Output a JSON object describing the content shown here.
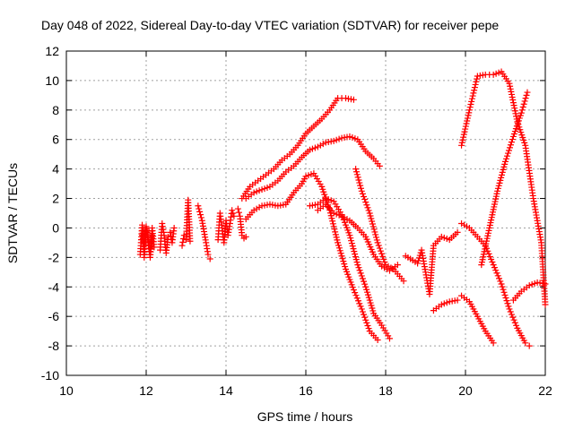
{
  "chart_data": {
    "type": "scatter",
    "title": "Day 048 of 2022, Sidereal Day-to-day VTEC variation (SDTVAR) for receiver pepe",
    "xlabel": "GPS time / hours",
    "ylabel": "SDTVAR / TECUs",
    "xlim": [
      10,
      22
    ],
    "ylim": [
      -10,
      12
    ],
    "xticks": [
      10,
      12,
      14,
      16,
      18,
      20,
      22
    ],
    "yticks": [
      -10,
      -8,
      -6,
      -4,
      -2,
      0,
      2,
      4,
      6,
      8,
      10,
      12
    ],
    "grid": true,
    "marker": "+",
    "color": "#ff0000",
    "series": [
      {
        "x": [
          11.85,
          11.9,
          11.95,
          12.0,
          12.05,
          12.1,
          12.15
        ],
        "y": [
          -1.8,
          0.2,
          -2.0,
          0.0,
          -1.0,
          -2.0,
          -0.5
        ]
      },
      {
        "x": [
          11.9,
          11.95,
          12.0,
          12.05,
          12.1,
          12.15,
          12.2
        ],
        "y": [
          -0.5,
          -1.2,
          0.1,
          -0.7,
          -1.6,
          0.0,
          -1.3
        ]
      },
      {
        "x": [
          12.35,
          12.4,
          12.45,
          12.5,
          12.55,
          12.6,
          12.65,
          12.7
        ],
        "y": [
          -1.5,
          0.3,
          -0.5,
          -1.7,
          -0.6,
          -0.3,
          -1.0,
          0.0
        ]
      },
      {
        "x": [
          12.9,
          12.95,
          13.0,
          13.05,
          13.1
        ],
        "y": [
          -1.2,
          -0.5,
          -0.8,
          1.9,
          -0.9
        ]
      },
      {
        "x": [
          13.3,
          13.4,
          13.5,
          13.55,
          13.6
        ],
        "y": [
          1.5,
          0.5,
          -1.0,
          -1.8,
          -2.1
        ]
      },
      {
        "x": [
          13.8,
          13.85,
          13.9,
          13.95,
          14.0,
          14.05,
          14.1,
          14.15,
          14.2
        ],
        "y": [
          -0.8,
          1.0,
          0.0,
          -1.0,
          0.5,
          -0.5,
          0.3,
          1.2,
          0.8
        ]
      },
      {
        "x": [
          14.3,
          14.35,
          14.4,
          14.45,
          14.5
        ],
        "y": [
          1.3,
          0.8,
          -0.5,
          -0.7,
          -0.6
        ]
      },
      {
        "x": [
          14.4,
          14.6,
          14.8,
          15.0,
          15.2,
          15.4,
          15.6,
          15.8,
          16.0,
          16.2,
          16.4,
          16.6,
          16.8,
          17.0,
          17.2
        ],
        "y": [
          2.0,
          2.8,
          3.2,
          3.6,
          4.0,
          4.6,
          5.0,
          5.6,
          6.4,
          6.9,
          7.4,
          8.0,
          8.8,
          8.8,
          8.7
        ]
      },
      {
        "x": [
          14.5,
          14.7,
          14.9,
          15.1,
          15.3,
          15.5,
          15.7,
          15.9,
          16.1,
          16.3,
          16.5,
          16.7,
          16.9,
          17.1,
          17.3,
          17.5,
          17.7,
          17.85
        ],
        "y": [
          2.0,
          2.4,
          2.6,
          2.8,
          3.2,
          3.8,
          4.2,
          4.8,
          5.3,
          5.5,
          5.8,
          5.9,
          6.1,
          6.2,
          6.0,
          5.2,
          4.7,
          4.2
        ]
      },
      {
        "x": [
          14.5,
          14.7,
          14.9,
          15.1,
          15.3,
          15.5,
          15.7,
          15.9,
          16.0,
          16.2,
          16.4,
          16.6,
          16.8,
          17.0,
          17.2,
          17.4,
          17.6,
          17.8
        ],
        "y": [
          0.6,
          1.2,
          1.5,
          1.6,
          1.5,
          1.6,
          2.4,
          3.0,
          3.5,
          3.7,
          2.8,
          1.2,
          -1.0,
          -2.8,
          -4.2,
          -5.5,
          -7.0,
          -7.6
        ]
      },
      {
        "x": [
          16.1,
          16.3,
          16.5,
          16.7,
          16.9,
          17.1,
          17.3,
          17.5,
          17.7,
          17.9,
          18.1
        ],
        "y": [
          1.5,
          1.6,
          2.0,
          1.8,
          0.9,
          -0.5,
          -2.5,
          -4.0,
          -5.8,
          -6.6,
          -7.5
        ]
      },
      {
        "x": [
          16.3,
          16.5,
          16.7,
          16.9,
          17.1,
          17.3,
          17.5,
          17.7,
          17.9,
          18.1,
          18.3
        ],
        "y": [
          1.2,
          1.6,
          1.0,
          0.8,
          0.5,
          0.0,
          -0.6,
          -1.8,
          -2.6,
          -2.9,
          -2.5
        ]
      },
      {
        "x": [
          17.25,
          17.4,
          17.6,
          17.8,
          18.0,
          18.2,
          18.45
        ],
        "y": [
          4.0,
          2.5,
          1.0,
          -1.0,
          -2.5,
          -2.8,
          -3.6
        ]
      },
      {
        "x": [
          18.5,
          18.8,
          18.9,
          19.0,
          19.1,
          19.2,
          19.4,
          19.6,
          19.8
        ],
        "y": [
          -1.9,
          -2.4,
          -1.5,
          -3.0,
          -4.5,
          -1.2,
          -0.6,
          -0.8,
          -0.3
        ]
      },
      {
        "x": [
          19.2,
          19.4,
          19.6,
          19.8
        ],
        "y": [
          -5.6,
          -5.2,
          -5.0,
          -4.9
        ]
      },
      {
        "x": [
          19.9,
          20.1,
          20.3,
          20.5,
          20.7,
          20.9,
          21.1,
          21.3,
          21.5,
          21.7,
          21.9,
          22.0
        ],
        "y": [
          5.6,
          8.0,
          10.3,
          10.4,
          10.4,
          10.6,
          9.8,
          7.2,
          5.6,
          2.0,
          -1.0,
          -5.2
        ]
      },
      {
        "x": [
          19.9,
          20.1,
          20.3,
          20.5,
          20.7,
          20.9,
          21.1,
          21.3,
          21.5,
          21.6
        ],
        "y": [
          0.3,
          0.0,
          -0.6,
          -1.2,
          -2.5,
          -3.8,
          -5.5,
          -6.8,
          -7.8,
          -8.0
        ]
      },
      {
        "x": [
          19.9,
          20.1,
          20.3,
          20.5,
          20.7
        ],
        "y": [
          -4.6,
          -5.0,
          -6.0,
          -7.0,
          -7.8
        ]
      },
      {
        "x": [
          20.4,
          20.6,
          20.8,
          21.0,
          21.2,
          21.4,
          21.55
        ],
        "y": [
          -2.5,
          0.0,
          2.5,
          4.5,
          6.2,
          7.8,
          9.2
        ]
      },
      {
        "x": [
          21.2,
          21.4,
          21.6,
          21.8,
          22.0
        ],
        "y": [
          -4.9,
          -4.3,
          -3.9,
          -3.7,
          -3.8
        ]
      }
    ]
  }
}
